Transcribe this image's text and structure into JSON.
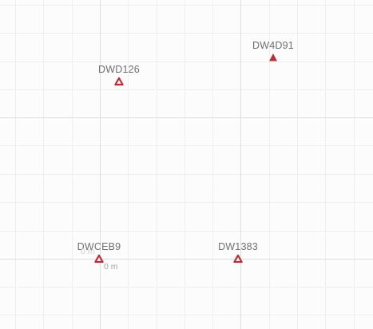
{
  "map": {
    "marker_color": "#b5323c",
    "markers": [
      {
        "id": "DW4D91",
        "style": "filled"
      },
      {
        "id": "DWD126",
        "style": "outline"
      },
      {
        "id": "DWCEB9",
        "style": "outline"
      },
      {
        "id": "DW1383",
        "style": "outline"
      }
    ],
    "scale_labels": [
      "0 m",
      "0 m"
    ]
  }
}
